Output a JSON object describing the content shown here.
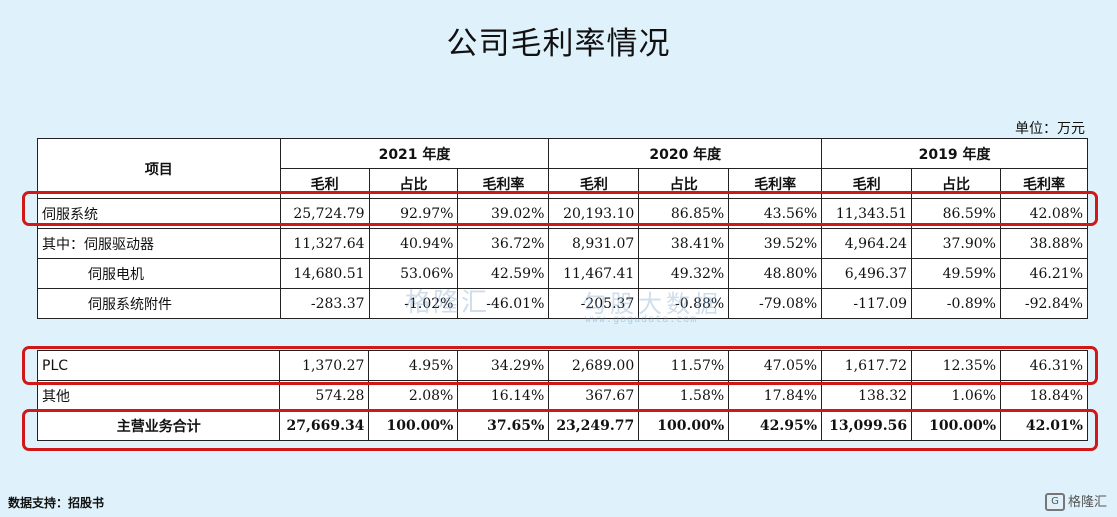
{
  "title": "公司毛利率情况",
  "unit": "单位：万元",
  "watermark": {
    "left": "格隆汇",
    "right": "勾股大数据",
    "url": "www.gogudata.com"
  },
  "source": "数据支持：招股书",
  "logo": "格隆汇",
  "chart_data": {
    "type": "table",
    "header": {
      "item": "项目",
      "years": [
        "2021 年度",
        "2020 年度",
        "2019 年度"
      ],
      "subcols": [
        "毛利",
        "占比",
        "毛利率"
      ]
    },
    "rows_top": [
      {
        "label": "伺服系统",
        "values": [
          "25,724.79",
          "92.97%",
          "39.02%",
          "20,193.10",
          "86.85%",
          "43.56%",
          "11,343.51",
          "86.59%",
          "42.08%"
        ]
      },
      {
        "label": "其中：伺服驱动器",
        "values": [
          "11,327.64",
          "40.94%",
          "36.72%",
          "8,931.07",
          "38.41%",
          "39.52%",
          "4,964.24",
          "37.90%",
          "38.88%"
        ]
      },
      {
        "label": "伺服电机",
        "values": [
          "14,680.51",
          "53.06%",
          "42.59%",
          "11,467.41",
          "49.32%",
          "48.80%",
          "6,496.37",
          "49.59%",
          "46.21%"
        ]
      },
      {
        "label": "伺服系统附件",
        "values": [
          "-283.37",
          "-1.02%",
          "-46.01%",
          "-205.37",
          "-0.88%",
          "-79.08%",
          "-117.09",
          "-0.89%",
          "-92.84%"
        ]
      }
    ],
    "rows_bottom": [
      {
        "label": "PLC",
        "values": [
          "1,370.27",
          "4.95%",
          "34.29%",
          "2,689.00",
          "11.57%",
          "47.05%",
          "1,617.72",
          "12.35%",
          "46.31%"
        ]
      },
      {
        "label": "其他",
        "values": [
          "574.28",
          "2.08%",
          "16.14%",
          "367.67",
          "1.58%",
          "17.84%",
          "138.32",
          "1.06%",
          "18.84%"
        ]
      },
      {
        "label": "主营业务合计",
        "values": [
          "27,669.34",
          "100.00%",
          "37.65%",
          "23,249.77",
          "100.00%",
          "42.95%",
          "13,099.56",
          "100.00%",
          "42.01%"
        ]
      }
    ]
  }
}
